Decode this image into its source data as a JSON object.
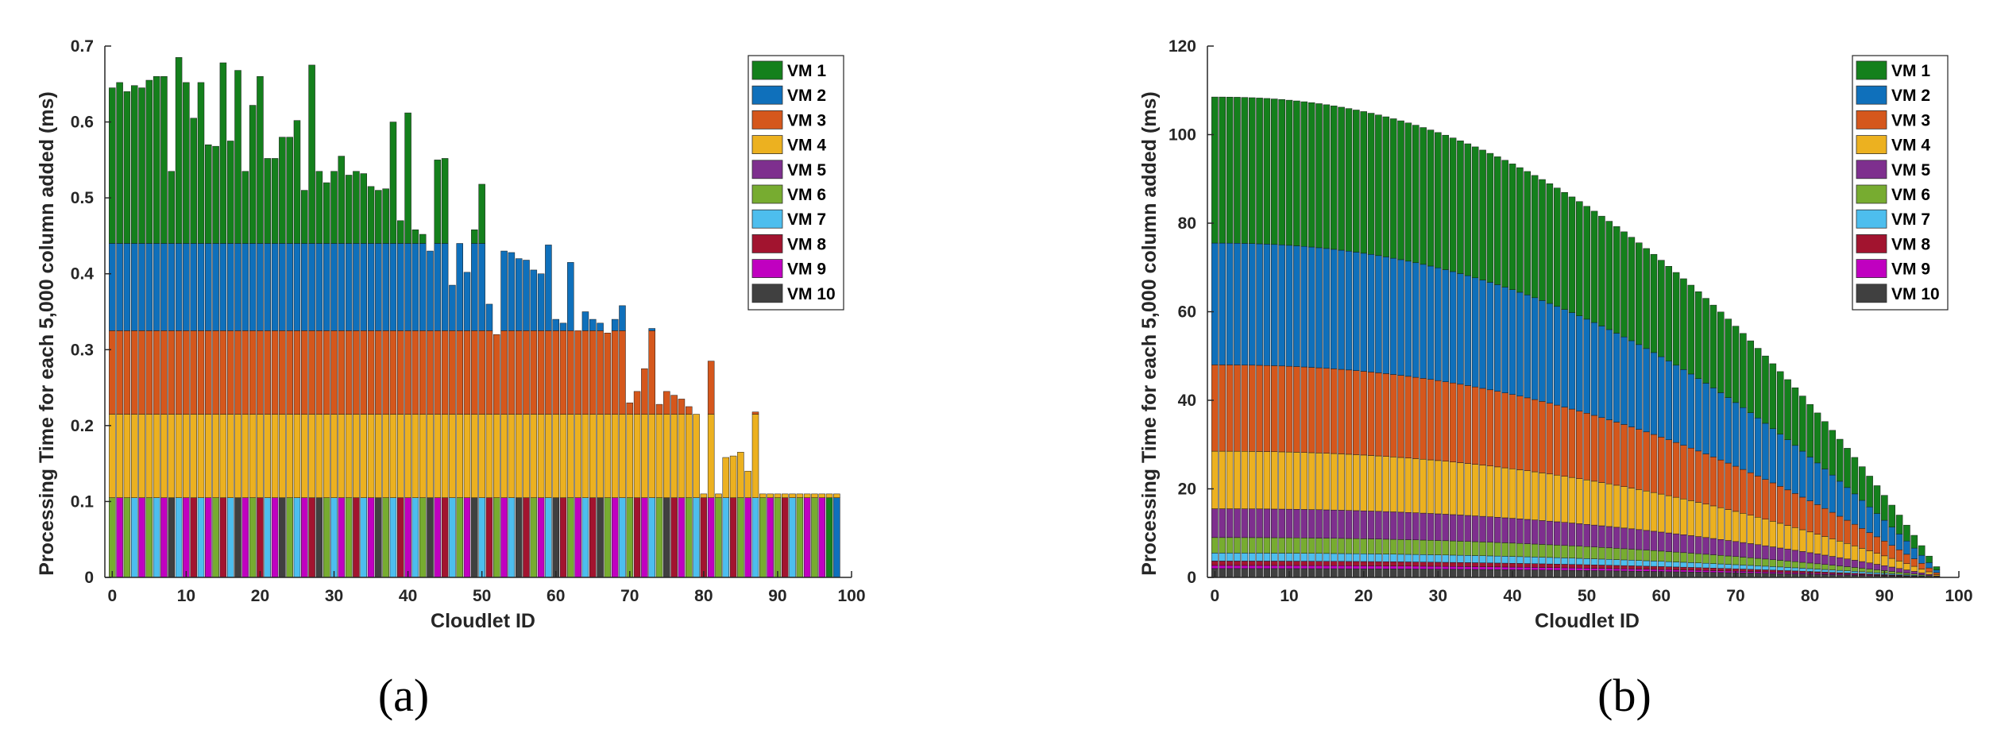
{
  "chart_data": [
    {
      "id": "a",
      "type": "stacked_bar",
      "caption": "(a)",
      "xlabel": "Cloudlet ID",
      "ylabel": "Processing Time for each 5,000 column added (ms)",
      "xlim": [
        -1,
        100
      ],
      "ylim": [
        0,
        0.7
      ],
      "xticks": [
        0,
        10,
        20,
        30,
        40,
        50,
        60,
        70,
        80,
        90,
        100
      ],
      "yticks": [
        0,
        0.1,
        0.2,
        0.3,
        0.4,
        0.5,
        0.6,
        0.7
      ],
      "ytick_labels": [
        "0",
        "0.1",
        "0.2",
        "0.3",
        "0.4",
        "0.5",
        "0.6",
        "0.7"
      ],
      "legend_position": "top-right",
      "series_names": [
        "VM 1",
        "VM 2",
        "VM 3",
        "VM 4",
        "VM 5",
        "VM 6",
        "VM 7",
        "VM 8",
        "VM 9",
        "VM 10"
      ],
      "series_colors": [
        "#14801c",
        "#0f70bb",
        "#d5571c",
        "#ecb120",
        "#7e2f8e",
        "#77ac30",
        "#4dbeee",
        "#a2142f",
        "#c000c0",
        "#404040"
      ],
      "bottom_segment_colors": [
        "#77ac30",
        "#c000c0",
        "#77ac30",
        "#4dbeee",
        "#c000c0",
        "#77ac30",
        "#4dbeee",
        "#c000c0",
        "#404040",
        "#4dbeee",
        "#c000c0",
        "#a2142f",
        "#4dbeee",
        "#c000c0",
        "#77ac30",
        "#a2142f",
        "#4dbeee",
        "#404040",
        "#c000c0",
        "#77ac30",
        "#a2142f",
        "#4dbeee",
        "#c000c0",
        "#404040",
        "#77ac30",
        "#4dbeee",
        "#c000c0",
        "#a2142f",
        "#404040",
        "#77ac30",
        "#4dbeee",
        "#c000c0",
        "#77ac30",
        "#a2142f",
        "#4dbeee",
        "#c000c0",
        "#404040",
        "#77ac30",
        "#4dbeee",
        "#a2142f",
        "#c000c0",
        "#4dbeee",
        "#77ac30",
        "#404040",
        "#c000c0",
        "#a2142f",
        "#4dbeee",
        "#77ac30",
        "#c000c0",
        "#404040",
        "#4dbeee",
        "#a2142f",
        "#77ac30",
        "#c000c0",
        "#4dbeee",
        "#404040",
        "#a2142f",
        "#77ac30",
        "#c000c0",
        "#4dbeee",
        "#404040",
        "#a2142f",
        "#77ac30",
        "#c000c0",
        "#4dbeee",
        "#a2142f",
        "#404040",
        "#77ac30",
        "#c000c0",
        "#4dbeee",
        "#77ac30",
        "#a2142f",
        "#c000c0",
        "#4dbeee",
        "#77ac30",
        "#404040",
        "#a2142f",
        "#c000c0",
        "#77ac30",
        "#4dbeee",
        "#a2142f",
        "#c000c0",
        "#77ac30",
        "#4dbeee",
        "#a2142f",
        "#77ac30",
        "#c000c0",
        "#4dbeee",
        "#77ac30",
        "#c000c0",
        "#77ac30",
        "#a2142f",
        "#4dbeee",
        "#77ac30",
        "#c000c0",
        "#77ac30",
        "#c000c0",
        "#14801c",
        "#0f70bb"
      ],
      "stack_value_rule": "stacked top of VM k = min(cumulative_tops[k], total); VM 1 segment runs from VM 2 top to total",
      "cumulative_tops": {
        "base": 0.105,
        "VM 4": 0.215,
        "VM 3": 0.325,
        "VM 2": 0.44
      },
      "totals": [
        0.645,
        0.652,
        0.64,
        0.648,
        0.645,
        0.655,
        0.66,
        0.66,
        0.535,
        0.685,
        0.652,
        0.605,
        0.652,
        0.57,
        0.568,
        0.678,
        0.575,
        0.668,
        0.535,
        0.622,
        0.66,
        0.552,
        0.552,
        0.58,
        0.58,
        0.602,
        0.51,
        0.675,
        0.535,
        0.52,
        0.535,
        0.555,
        0.53,
        0.535,
        0.532,
        0.515,
        0.51,
        0.512,
        0.6,
        0.47,
        0.612,
        0.458,
        0.452,
        0.43,
        0.55,
        0.552,
        0.385,
        0.44,
        0.402,
        0.458,
        0.518,
        0.36,
        0.32,
        0.43,
        0.428,
        0.42,
        0.418,
        0.405,
        0.4,
        0.438,
        0.34,
        0.335,
        0.415,
        0.325,
        0.35,
        0.34,
        0.335,
        0.322,
        0.34,
        0.358,
        0.23,
        0.245,
        0.275,
        0.328,
        0.228,
        0.245,
        0.24,
        0.235,
        0.225,
        0.215,
        0.11,
        0.285,
        0.11,
        0.158,
        0.16,
        0.165,
        0.14,
        0.218,
        0.11,
        0.11,
        0.11,
        0.11,
        0.11,
        0.11,
        0.11,
        0.11,
        0.11,
        0.11,
        0.11
      ]
    },
    {
      "id": "b",
      "type": "stacked_bar",
      "caption": "(b)",
      "xlabel": "Cloudlet ID",
      "ylabel": "Processing Time for each 5,000 column added (ms)",
      "xlim": [
        -1,
        100
      ],
      "ylim": [
        0,
        120
      ],
      "xticks": [
        0,
        10,
        20,
        30,
        40,
        50,
        60,
        70,
        80,
        90,
        100
      ],
      "yticks": [
        0,
        20,
        40,
        60,
        80,
        100,
        120
      ],
      "ytick_labels": [
        "0",
        "20",
        "40",
        "60",
        "80",
        "100",
        "120"
      ],
      "legend_position": "top-right",
      "series_names": [
        "VM 1",
        "VM 2",
        "VM 3",
        "VM 4",
        "VM 5",
        "VM 6",
        "VM 7",
        "VM 8",
        "VM 9",
        "VM 10"
      ],
      "series_colors": [
        "#14801c",
        "#0f70bb",
        "#d5571c",
        "#ecb120",
        "#7e2f8e",
        "#77ac30",
        "#4dbeee",
        "#a2142f",
        "#c000c0",
        "#404040"
      ],
      "num_bars": 99,
      "totals_formula": "total(i) = 108.5 * (1 - (i/98)^2.2)",
      "segment_values_at_start": [
        33.0,
        27.5,
        19.5,
        13.0,
        6.5,
        3.5,
        1.8,
        1.0,
        0.7,
        2.0
      ]
    }
  ],
  "legend": {
    "labels": [
      "VM 1",
      "VM 2",
      "VM 3",
      "VM 4",
      "VM 5",
      "VM 6",
      "VM 7",
      "VM 8",
      "VM 9",
      "VM 10"
    ]
  },
  "captions": {
    "a": "(a)",
    "b": "(b)"
  },
  "axis_labels": {
    "a": {
      "x": "Cloudlet ID",
      "y": "Processing Time for each 5,000 column added (ms)"
    },
    "b": {
      "x": "Cloudlet ID",
      "y": "Processing Time for each 5,000 column added (ms)"
    }
  }
}
